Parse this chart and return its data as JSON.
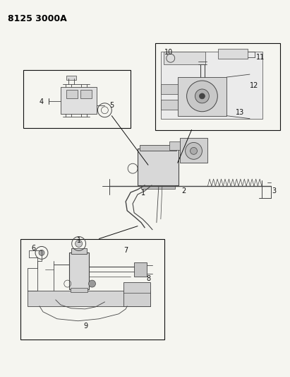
{
  "title": "8125 3000A",
  "bg_color": "#f5f5f0",
  "title_fontsize": 8.5,
  "label_fontsize": 7,
  "lc": "#444444",
  "dark": "#111111",
  "gray1": "#888888",
  "gray2": "#aaaaaa"
}
